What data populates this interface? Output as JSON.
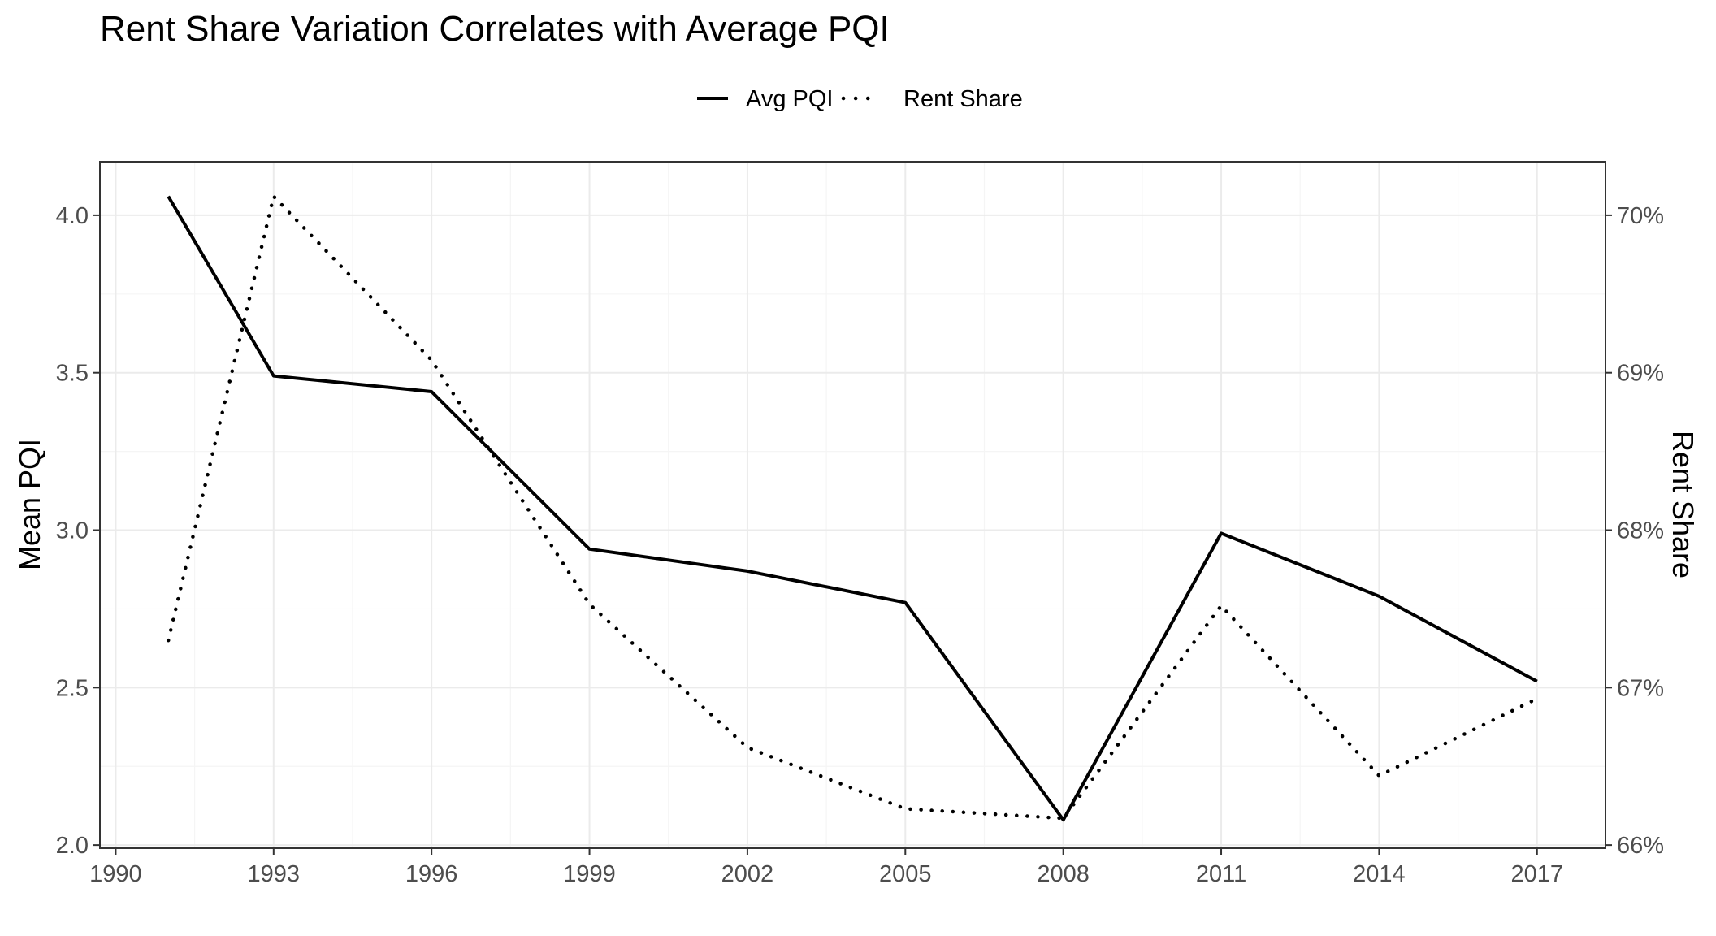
{
  "chart_data": {
    "type": "line",
    "title": "Rent Share Variation Correlates with Average PQI",
    "xlabel": "",
    "ylabel": "Mean PQI",
    "ylabel_right": "Rent Share",
    "x": [
      1991,
      1993,
      1996,
      1999,
      2002,
      2005,
      2008,
      2011,
      2014,
      2017
    ],
    "xlim": [
      1989.7,
      2018.3
    ],
    "x_ticks": [
      1990,
      1993,
      1996,
      1999,
      2002,
      2005,
      2008,
      2011,
      2014,
      2017
    ],
    "x_tick_labels": [
      "1990",
      "1993",
      "1996",
      "1999",
      "2002",
      "2005",
      "2008",
      "2011",
      "2014",
      "2017"
    ],
    "ylim": [
      1.99,
      4.17
    ],
    "y_ticks": [
      2.0,
      2.5,
      3.0,
      3.5,
      4.0
    ],
    "y_tick_labels": [
      "2.0",
      "2.5",
      "3.0",
      "3.5",
      "4.0"
    ],
    "ylim_right": [
      65.98,
      70.34
    ],
    "y_ticks_right": [
      66,
      67,
      68,
      69,
      70
    ],
    "y_tick_labels_right": [
      "66%",
      "67%",
      "68%",
      "69%",
      "70%"
    ],
    "series": [
      {
        "name": "Avg PQI",
        "axis": "left",
        "style": "solid",
        "color": "#000000",
        "values": [
          4.06,
          3.49,
          3.44,
          2.94,
          2.87,
          2.77,
          2.08,
          2.99,
          2.79,
          2.52
        ]
      },
      {
        "name": "Rent Share",
        "axis": "right",
        "style": "dotted",
        "color": "#000000",
        "values": [
          67.3,
          70.12,
          69.08,
          67.53,
          66.62,
          66.23,
          66.17,
          67.52,
          66.44,
          66.93
        ]
      }
    ],
    "legend_position": "top",
    "grid": true
  },
  "colors": {
    "background": "#ffffff",
    "grid_major": "#ebebeb",
    "grid_minor": "#f5f5f5",
    "panel_border": "#333333",
    "tick_text": "#4d4d4d"
  }
}
